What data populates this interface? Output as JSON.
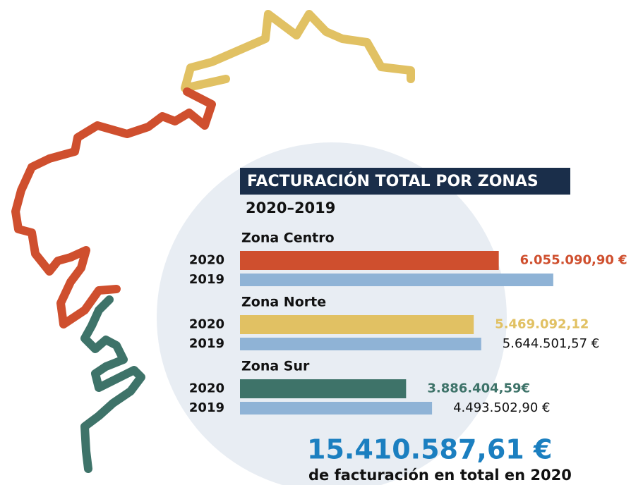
{
  "chart_data": {
    "type": "bar",
    "orientation": "horizontal",
    "title": "FACTURACIÓN TOTAL POR ZONAS",
    "subtitle": "2020–2019",
    "categories": [
      "Zona Centro",
      "Zona Norte",
      "Zona Sur"
    ],
    "series": [
      {
        "name": "2020",
        "colors": [
          "#cf4f2e",
          "#e1c163",
          "#3e7369"
        ],
        "values": [
          6055090.9,
          5469092.12,
          3886404.59
        ],
        "value_labels": [
          "6.055.090,90 €",
          "5.469.092,12",
          "3.886.404,59€"
        ]
      },
      {
        "name": "2019",
        "color": "#8fb3d6",
        "values": [
          7330000,
          5644501.57,
          4493502.9
        ],
        "value_labels": [
          null,
          "5.644.501,57 €",
          "4.493.502,90 €"
        ]
      }
    ],
    "xlim": [
      0,
      9000000
    ],
    "total": "15.410.587,61 €",
    "total_caption": "de facturación en total en 2020"
  }
}
